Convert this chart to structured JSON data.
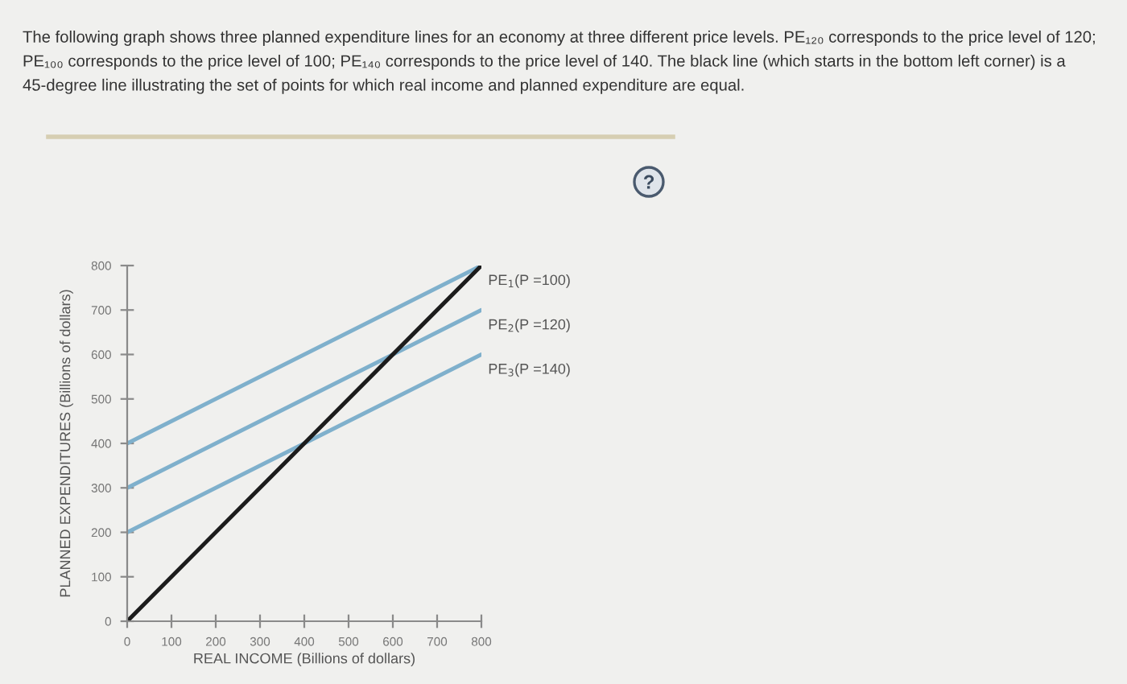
{
  "chart_data": {
    "type": "line",
    "title": "The following graph shows three planned expenditure lines for an economy at three different price levels. PE₁₂₀ corresponds to the price level of 120; PE₁₀₀ corresponds to the price level of 100; PE₁₄₀ corresponds to the price level of 140. The black line (which starts in the bottom left corner) is a 45-degree line illustrating the set of points for which real income and planned expenditure are equal.",
    "xlabel": "REAL INCOME (Billions of dollars)",
    "ylabel": "PLANNED EXPENDITURES (Billions of dollars)",
    "x": [
      0,
      800
    ],
    "series": [
      {
        "name": "PE$_{1}$(P =100)",
        "color": "#7fb0cc",
        "values": [
          400,
          800
        ]
      },
      {
        "name": "PE$_{2}$(P =120)",
        "color": "#7fb0cc",
        "values": [
          300,
          700
        ]
      },
      {
        "name": "PE$_{3}$(P =140)",
        "color": "#7fb0cc",
        "values": [
          200,
          600
        ]
      },
      {
        "color": "#1c1c1c",
        "values": [
          0,
          800
        ]
      }
    ],
    "xlim": [
      0,
      800
    ],
    "ylim": [
      0,
      800
    ],
    "xticks": [
      0,
      100,
      200,
      300,
      400,
      500,
      600,
      700,
      800
    ],
    "yticks": [
      0,
      100,
      200,
      300,
      400,
      500,
      600,
      700,
      800
    ],
    "marker": "none",
    "line_style": "solid"
  }
}
